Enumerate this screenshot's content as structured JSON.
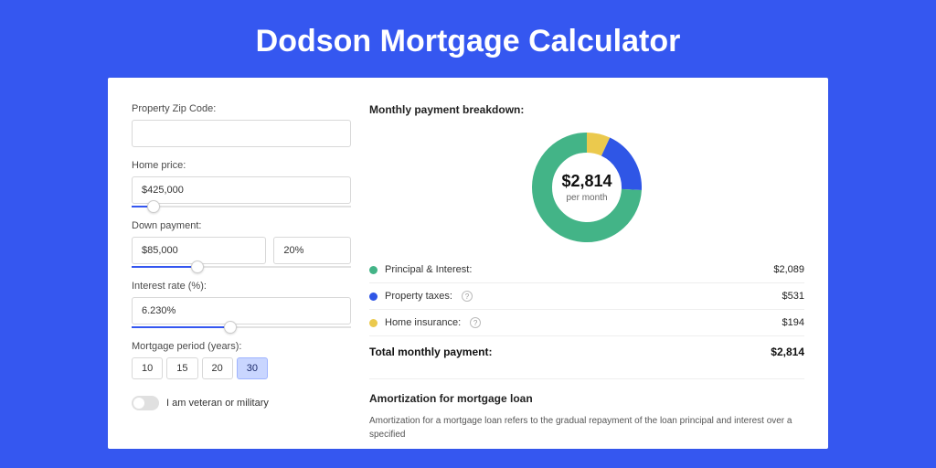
{
  "page": {
    "title": "Dodson Mortgage Calculator",
    "background_color": "#3557f0"
  },
  "form": {
    "zip": {
      "label": "Property Zip Code:",
      "value": ""
    },
    "home_price": {
      "label": "Home price:",
      "value": "$425,000",
      "slider_pct": 10
    },
    "down_payment": {
      "label": "Down payment:",
      "value": "$85,000",
      "percent": "20%",
      "slider_pct": 30
    },
    "interest": {
      "label": "Interest rate (%):",
      "value": "6.230%",
      "slider_pct": 45
    },
    "period": {
      "label": "Mortgage period (years):",
      "options": [
        "10",
        "15",
        "20",
        "30"
      ],
      "selected": "30"
    },
    "veteran": {
      "label": "I am veteran or military",
      "checked": false
    }
  },
  "breakdown": {
    "title": "Monthly payment breakdown:",
    "center_amount": "$2,814",
    "center_sub": "per month",
    "items": [
      {
        "label": "Principal & Interest:",
        "value": "$2,089",
        "color": "#43b487",
        "info": false
      },
      {
        "label": "Property taxes:",
        "value": "$531",
        "color": "#2f56e6",
        "info": true
      },
      {
        "label": "Home insurance:",
        "value": "$194",
        "color": "#ebc94d",
        "info": true
      }
    ],
    "total_label": "Total monthly payment:",
    "total_value": "$2,814",
    "donut": {
      "type": "donut",
      "size": 120,
      "thickness": 22,
      "background": "#ffffff",
      "slices": [
        {
          "color": "#ebc94d",
          "fraction": 0.069
        },
        {
          "color": "#2f56e6",
          "fraction": 0.189
        },
        {
          "color": "#43b487",
          "fraction": 0.742
        }
      ]
    }
  },
  "amortization": {
    "title": "Amortization for mortgage loan",
    "text": "Amortization for a mortgage loan refers to the gradual repayment of the loan principal and interest over a specified"
  }
}
